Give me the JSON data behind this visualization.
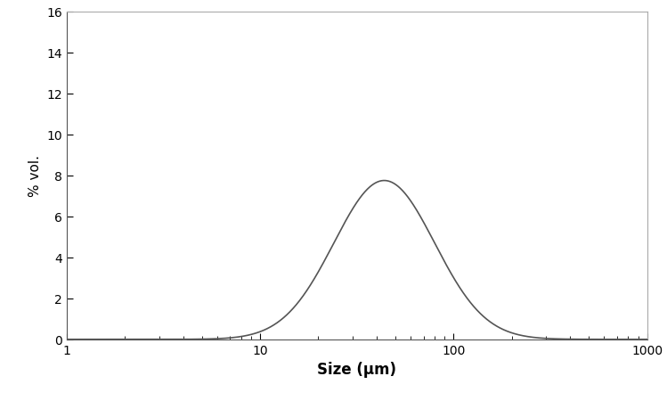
{
  "xlabel": "Size (μm)",
  "ylabel": "% vol.",
  "xlim": [
    1,
    1000
  ],
  "ylim": [
    0,
    16
  ],
  "yticks": [
    0,
    2,
    4,
    6,
    8,
    10,
    12,
    14,
    16
  ],
  "xticks": [
    1,
    10,
    100,
    1000
  ],
  "xticklabels": [
    "1",
    "10",
    "100",
    "1000"
  ],
  "peak_mu_log": 3.78,
  "peak_sigma_log": 0.6,
  "peak_height": 7.75,
  "line_color": "#555555",
  "line_width": 1.2,
  "background_color": "#ffffff",
  "xlabel_fontsize": 12,
  "ylabel_fontsize": 11,
  "tick_fontsize": 10,
  "spine_color": "#aaaaaa"
}
